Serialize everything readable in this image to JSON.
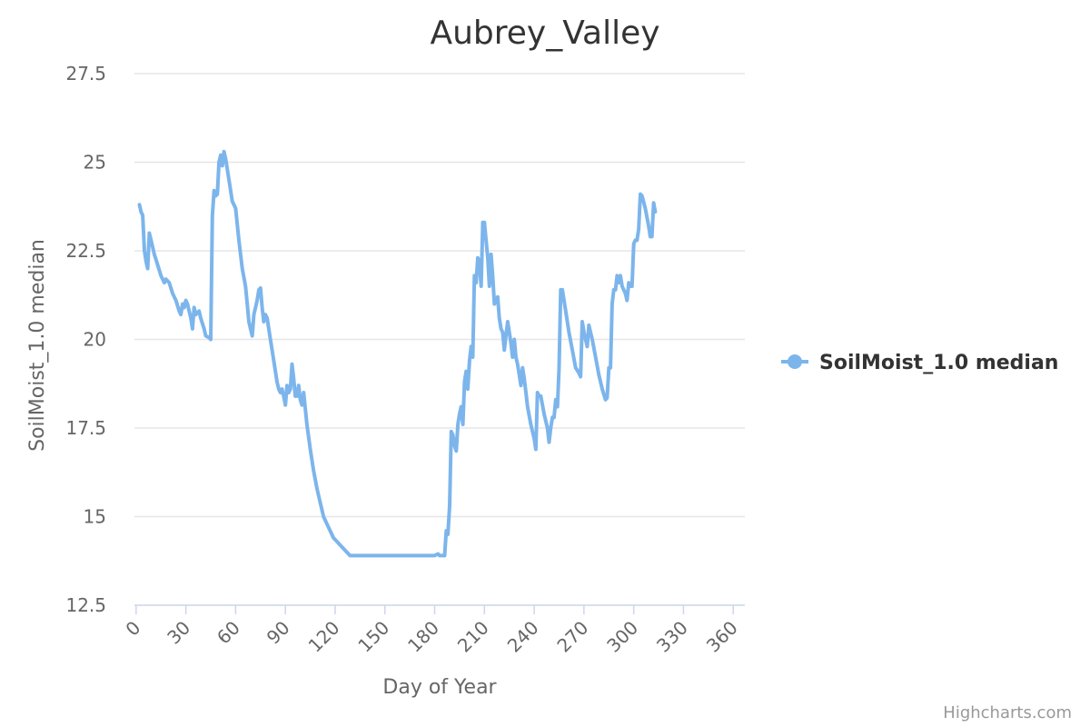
{
  "chart_data": {
    "type": "line",
    "title": "Aubrey_Valley",
    "xlabel": "Day of Year",
    "ylabel": "SoilMoist_1.0 median",
    "xlim": [
      -1,
      367
    ],
    "ylim": [
      12.5,
      28.5
    ],
    "x_ticks": [
      0,
      30,
      60,
      90,
      120,
      150,
      180,
      210,
      240,
      270,
      300,
      330,
      360
    ],
    "y_ticks": [
      12.5,
      15,
      17.5,
      20,
      22.5,
      25,
      27.5
    ],
    "y_tick_labels": [
      "12.5",
      "15",
      "17.5",
      "20",
      "22.5",
      "25",
      "27.5"
    ],
    "grid": true,
    "legend_position": "right",
    "series": [
      {
        "name": "SoilMoist_1.0 median",
        "color": "#7cb5ec",
        "points": [
          [
            2,
            23.8
          ],
          [
            3,
            23.6
          ],
          [
            4,
            23.5
          ],
          [
            5,
            22.5
          ],
          [
            6,
            22.2
          ],
          [
            7,
            22.0
          ],
          [
            8,
            23.0
          ],
          [
            9,
            22.8
          ],
          [
            11,
            22.4
          ],
          [
            13,
            22.1
          ],
          [
            15,
            21.8
          ],
          [
            17,
            21.6
          ],
          [
            18,
            21.7
          ],
          [
            20,
            21.6
          ],
          [
            22,
            21.3
          ],
          [
            24,
            21.1
          ],
          [
            26,
            20.8
          ],
          [
            27,
            20.7
          ],
          [
            28,
            21.0
          ],
          [
            29,
            20.9
          ],
          [
            30,
            21.1
          ],
          [
            31,
            21.0
          ],
          [
            33,
            20.6
          ],
          [
            34,
            20.3
          ],
          [
            35,
            20.9
          ],
          [
            36,
            20.7
          ],
          [
            38,
            20.8
          ],
          [
            39,
            20.6
          ],
          [
            41,
            20.3
          ],
          [
            42,
            20.1
          ],
          [
            44,
            20.05
          ],
          [
            45,
            20.0
          ],
          [
            46,
            23.5
          ],
          [
            47,
            24.2
          ],
          [
            48,
            24.05
          ],
          [
            49,
            24.1
          ],
          [
            50,
            25.0
          ],
          [
            51,
            25.2
          ],
          [
            52,
            24.9
          ],
          [
            53,
            25.3
          ],
          [
            54,
            25.1
          ],
          [
            56,
            24.5
          ],
          [
            58,
            23.9
          ],
          [
            60,
            23.7
          ],
          [
            62,
            22.8
          ],
          [
            64,
            22.0
          ],
          [
            66,
            21.5
          ],
          [
            67,
            21.0
          ],
          [
            68,
            20.5
          ],
          [
            69,
            20.3
          ],
          [
            70,
            20.1
          ],
          [
            71,
            20.7
          ],
          [
            72,
            20.9
          ],
          [
            73,
            21.1
          ],
          [
            74,
            21.4
          ],
          [
            75,
            21.45
          ],
          [
            76,
            20.9
          ],
          [
            77,
            20.5
          ],
          [
            78,
            20.7
          ],
          [
            79,
            20.6
          ],
          [
            81,
            20.0
          ],
          [
            83,
            19.4
          ],
          [
            85,
            18.8
          ],
          [
            86,
            18.6
          ],
          [
            87,
            18.5
          ],
          [
            88,
            18.6
          ],
          [
            89,
            18.4
          ],
          [
            90,
            18.15
          ],
          [
            91,
            18.7
          ],
          [
            92,
            18.5
          ],
          [
            93,
            18.6
          ],
          [
            94,
            19.3
          ],
          [
            95,
            18.9
          ],
          [
            96,
            18.4
          ],
          [
            97,
            18.4
          ],
          [
            98,
            18.7
          ],
          [
            99,
            18.3
          ],
          [
            100,
            18.15
          ],
          [
            101,
            18.5
          ],
          [
            103,
            17.6
          ],
          [
            105,
            16.9
          ],
          [
            107,
            16.3
          ],
          [
            109,
            15.8
          ],
          [
            111,
            15.4
          ],
          [
            113,
            15.0
          ],
          [
            115,
            14.8
          ],
          [
            117,
            14.6
          ],
          [
            119,
            14.4
          ],
          [
            121,
            14.3
          ],
          [
            123,
            14.2
          ],
          [
            125,
            14.1
          ],
          [
            127,
            14.0
          ],
          [
            129,
            13.9
          ],
          [
            135,
            13.9
          ],
          [
            140,
            13.9
          ],
          [
            145,
            13.9
          ],
          [
            150,
            13.9
          ],
          [
            155,
            13.9
          ],
          [
            160,
            13.9
          ],
          [
            165,
            13.9
          ],
          [
            170,
            13.9
          ],
          [
            175,
            13.9
          ],
          [
            180,
            13.9
          ],
          [
            182,
            13.95
          ],
          [
            183,
            13.9
          ],
          [
            186,
            13.9
          ],
          [
            187,
            14.6
          ],
          [
            188,
            14.5
          ],
          [
            189,
            15.3
          ],
          [
            190,
            17.4
          ],
          [
            191,
            17.3
          ],
          [
            192,
            17.0
          ],
          [
            193,
            16.85
          ],
          [
            194,
            17.6
          ],
          [
            195,
            17.9
          ],
          [
            196,
            18.1
          ],
          [
            197,
            17.6
          ],
          [
            198,
            18.8
          ],
          [
            199,
            19.1
          ],
          [
            200,
            18.6
          ],
          [
            201,
            19.4
          ],
          [
            202,
            19.8
          ],
          [
            203,
            19.5
          ],
          [
            204,
            21.8
          ],
          [
            205,
            21.6
          ],
          [
            206,
            22.3
          ],
          [
            207,
            22.2
          ],
          [
            208,
            21.5
          ],
          [
            209,
            23.3
          ],
          [
            210,
            23.3
          ],
          [
            211,
            22.8
          ],
          [
            212,
            22.3
          ],
          [
            213,
            21.5
          ],
          [
            214,
            22.4
          ],
          [
            215,
            21.8
          ],
          [
            216,
            21.0
          ],
          [
            217,
            21.1
          ],
          [
            218,
            21.2
          ],
          [
            219,
            20.6
          ],
          [
            220,
            20.3
          ],
          [
            221,
            20.2
          ],
          [
            222,
            19.7
          ],
          [
            223,
            20.1
          ],
          [
            224,
            20.5
          ],
          [
            225,
            20.2
          ],
          [
            226,
            19.9
          ],
          [
            227,
            19.5
          ],
          [
            228,
            20.0
          ],
          [
            229,
            19.5
          ],
          [
            230,
            19.3
          ],
          [
            231,
            19.0
          ],
          [
            232,
            18.7
          ],
          [
            233,
            19.2
          ],
          [
            234,
            18.9
          ],
          [
            235,
            18.5
          ],
          [
            236,
            18.1
          ],
          [
            238,
            17.6
          ],
          [
            240,
            17.2
          ],
          [
            241,
            16.9
          ],
          [
            242,
            18.5
          ],
          [
            243,
            18.4
          ],
          [
            244,
            18.4
          ],
          [
            246,
            17.9
          ],
          [
            248,
            17.5
          ],
          [
            249,
            17.1
          ],
          [
            250,
            17.5
          ],
          [
            251,
            17.8
          ],
          [
            252,
            17.8
          ],
          [
            253,
            18.3
          ],
          [
            254,
            18.1
          ],
          [
            255,
            19.2
          ],
          [
            256,
            21.4
          ],
          [
            257,
            21.4
          ],
          [
            259,
            20.8
          ],
          [
            261,
            20.2
          ],
          [
            263,
            19.7
          ],
          [
            265,
            19.2
          ],
          [
            267,
            19.05
          ],
          [
            268,
            18.95
          ],
          [
            269,
            20.5
          ],
          [
            270,
            20.2
          ],
          [
            271,
            20.0
          ],
          [
            272,
            19.8
          ],
          [
            273,
            20.4
          ],
          [
            275,
            20.0
          ],
          [
            277,
            19.5
          ],
          [
            279,
            19.0
          ],
          [
            281,
            18.6
          ],
          [
            283,
            18.3
          ],
          [
            284,
            18.35
          ],
          [
            285,
            19.2
          ],
          [
            286,
            19.2
          ],
          [
            287,
            21.0
          ],
          [
            288,
            21.4
          ],
          [
            289,
            21.4
          ],
          [
            290,
            21.8
          ],
          [
            291,
            21.6
          ],
          [
            292,
            21.8
          ],
          [
            293,
            21.5
          ],
          [
            295,
            21.3
          ],
          [
            296,
            21.1
          ],
          [
            297,
            21.6
          ],
          [
            298,
            21.5
          ],
          [
            299,
            21.5
          ],
          [
            300,
            22.7
          ],
          [
            301,
            22.8
          ],
          [
            302,
            22.8
          ],
          [
            303,
            23.1
          ],
          [
            304,
            24.1
          ],
          [
            305,
            24.05
          ],
          [
            307,
            23.7
          ],
          [
            309,
            23.2
          ],
          [
            310,
            22.9
          ],
          [
            311,
            22.9
          ],
          [
            312,
            23.85
          ],
          [
            313,
            23.6
          ]
        ]
      }
    ]
  },
  "credits": "Highcharts.com"
}
